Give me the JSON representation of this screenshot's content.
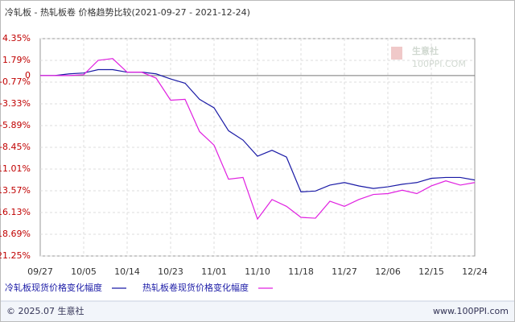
{
  "chart_data": {
    "type": "line",
    "title": "冷轧板 - 热轧板卷 价格趋势比较(2021-09-27 - 2021-12-24)",
    "categories": [
      "09/27",
      null,
      null,
      "10/05",
      null,
      null,
      "10/14",
      null,
      null,
      "10/23",
      null,
      null,
      "11/01",
      null,
      null,
      "11/10",
      null,
      null,
      "11/18",
      null,
      null,
      "11/27",
      null,
      null,
      "12/06",
      null,
      null,
      "12/15",
      null,
      null,
      "12/24"
    ],
    "series": [
      {
        "name": "冷轧板现货价格变化幅度",
        "color": "#1a1aa6",
        "values": [
          0,
          0,
          0.2,
          0.3,
          0.7,
          0.7,
          0.4,
          0.4,
          0.2,
          -0.4,
          -0.9,
          -2.8,
          -3.8,
          -6.5,
          -7.6,
          -9.5,
          -8.8,
          -9.6,
          -13.7,
          -13.6,
          -12.9,
          -12.6,
          -13.0,
          -13.3,
          -13.1,
          -12.8,
          -12.6,
          -12.1,
          -12.0,
          -12.0,
          -12.3
        ]
      },
      {
        "name": "热轧板卷现货价格变化幅度",
        "color": "#e020e0",
        "values": [
          0,
          0,
          0,
          0.1,
          1.8,
          2.0,
          0.4,
          0.4,
          -0.3,
          -2.9,
          -2.8,
          -6.6,
          -8.2,
          -12.2,
          -12.0,
          -16.9,
          -14.6,
          -15.4,
          -16.7,
          -16.8,
          -14.8,
          -15.4,
          -14.6,
          -14.0,
          -13.9,
          -13.5,
          -13.9,
          -13.0,
          -12.4,
          -12.9,
          -12.6
        ]
      }
    ],
    "ylim": [
      -21.25,
      4.35
    ],
    "yticks": [
      {
        "value": 4.35,
        "label": "4.35%"
      },
      {
        "value": 1.79,
        "label": "1.79%"
      },
      0,
      {
        "value": -0.77,
        "label": "-0.77%"
      },
      {
        "value": -3.33,
        "label": "-3.33%"
      },
      {
        "value": -5.89,
        "label": "-5.89%"
      },
      {
        "value": -8.45,
        "label": "-8.45%"
      },
      {
        "value": -11.01,
        "label": "-11.01%"
      },
      {
        "value": -13.57,
        "label": "-13.57%"
      },
      {
        "value": -16.13,
        "label": "-16.13%"
      },
      {
        "value": -18.69,
        "label": "-18.69%"
      },
      {
        "value": -21.25,
        "label": "-21.25%"
      }
    ],
    "grid": true,
    "watermark": {
      "name": "生意社",
      "site": "100PPI.COM"
    },
    "footer": {
      "left": "© 2025.07 生意社",
      "right": "www.100PPI.com"
    }
  }
}
